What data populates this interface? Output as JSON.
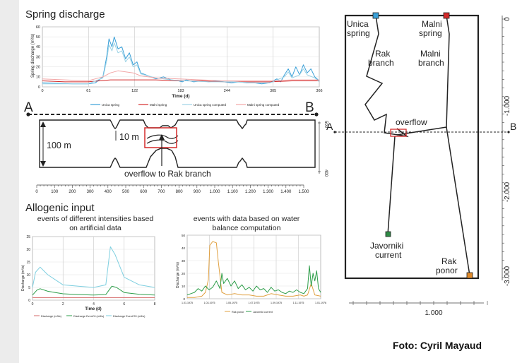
{
  "spring_panel": {
    "title": "Spring discharge",
    "ylabel": "Spring discharge (m³/s)",
    "xlabel": "Time (d)",
    "legend": [
      "Unica spring",
      "Malni spring",
      "Unica spring computed",
      "Malni spring computed"
    ]
  },
  "section": {
    "label_a": "A",
    "label_b": "B",
    "height_label": "100 m",
    "gap_label": "10 m",
    "overflow_label": "overflow to Rak branch",
    "axis_ticks": [
      "0",
      "100",
      "200",
      "300",
      "400",
      "500",
      "600",
      "700",
      "800",
      "900",
      "1.000",
      "1.100",
      "1.200",
      "1.300",
      "1.400",
      "1.500"
    ],
    "right_ticks": [
      "500",
      "400"
    ]
  },
  "allogenic": {
    "title": "Allogenic input",
    "sub_left_1": "events of different intensities based",
    "sub_left_2": "on artificial data",
    "sub_right_1": "events with data based on water",
    "sub_right_2": "balance computation"
  },
  "left_chart": {
    "ylabel": "Discharge (m³/s)",
    "xlabel": "Time (d)",
    "legend": [
      "Discharge (m3/s)",
      "Discharge Event*6 (m3/s)",
      "Discharge Event*20 (m3/s)"
    ]
  },
  "right_chart": {
    "ylabel": "Discharge (m³/s)",
    "xticks": [
      "1.01.1975",
      "1.03.1975",
      "1.05.1975",
      "1.07.1975",
      "1.09.1975",
      "1.11.1975",
      "1.01.1976"
    ],
    "legend": [
      "Rak ponor",
      "Javorniki current"
    ]
  },
  "map": {
    "unica_1": "Unica",
    "unica_2": "spring",
    "malni_1": "Malni",
    "malni_2": "spring",
    "rak_branch_1": "Rak",
    "rak_branch_2": "branch",
    "malni_branch_1": "Malni",
    "malni_branch_2": "branch",
    "overflow": "overflow",
    "label_a": "A",
    "label_b": "B",
    "jav_1": "Javorniki",
    "jav_2": "current",
    "ponor_1": "Rak",
    "ponor_2": "ponor",
    "bottom_tick": "1.000",
    "colors": {
      "unica": "#3aa0d8",
      "malni": "#d42a2a",
      "javorniki": "#2e8b45",
      "rak": "#e08a2a"
    }
  },
  "map_axis": {
    "ticks": [
      "0",
      "-1.000",
      "-2.000",
      "-3.000"
    ]
  },
  "credit": "Foto: Cyril Mayaud",
  "chart_data": [
    {
      "type": "line",
      "xlabel": "Time (d)",
      "ylabel": "Spring discharge (m³/s)",
      "xlim": [
        0,
        366
      ],
      "ylim": [
        0,
        60
      ],
      "x_ticks": [
        0,
        61,
        122,
        183,
        244,
        305,
        366
      ],
      "y_ticks": [
        0,
        10,
        20,
        30,
        40,
        50,
        60
      ],
      "legend": "bottom",
      "series": [
        {
          "name": "Unica spring",
          "color": "#3aa0d8",
          "x": [
            0,
            20,
            40,
            60,
            70,
            80,
            85,
            88,
            92,
            95,
            100,
            105,
            110,
            115,
            120,
            125,
            130,
            140,
            150,
            160,
            170,
            180,
            185,
            190,
            200,
            210,
            220,
            230,
            240,
            250,
            260,
            270,
            280,
            290,
            300,
            305,
            310,
            315,
            320,
            325,
            330,
            335,
            340,
            345,
            350,
            355,
            360,
            366
          ],
          "y": [
            4,
            3.5,
            3,
            3,
            4,
            10,
            30,
            48,
            40,
            50,
            38,
            40,
            28,
            34,
            22,
            25,
            14,
            11,
            8,
            10,
            7,
            6,
            5,
            7,
            5,
            6,
            5,
            6,
            5,
            4,
            5,
            4,
            4,
            3,
            4,
            6,
            8,
            5,
            12,
            18,
            10,
            20,
            12,
            22,
            14,
            18,
            10,
            6
          ]
        },
        {
          "name": "Malni spring",
          "color": "#d42a2a",
          "x": [
            0,
            30,
            60,
            90,
            120,
            150,
            180,
            210,
            240,
            270,
            300,
            330,
            366
          ],
          "y": [
            6,
            5,
            5,
            7,
            7,
            7,
            6,
            6,
            5,
            5,
            5,
            6,
            6
          ]
        },
        {
          "name": "Unica spring computed",
          "color": "#9dd3e6",
          "x": [
            0,
            40,
            60,
            80,
            85,
            88,
            92,
            95,
            100,
            105,
            110,
            115,
            120,
            125,
            130,
            150,
            170,
            190,
            220,
            250,
            280,
            300,
            305,
            310,
            320,
            325,
            330,
            340,
            345,
            350,
            360,
            366
          ],
          "y": [
            3,
            3,
            3,
            9,
            26,
            42,
            36,
            44,
            34,
            36,
            25,
            30,
            20,
            22,
            13,
            9,
            7,
            6,
            5,
            5,
            4,
            4,
            5,
            7,
            10,
            15,
            9,
            12,
            18,
            12,
            9,
            5
          ]
        },
        {
          "name": "Malni spring computed",
          "color": "#f2a7a7",
          "x": [
            0,
            30,
            60,
            80,
            90,
            100,
            110,
            120,
            130,
            150,
            180,
            210,
            240,
            270,
            300,
            330,
            366
          ],
          "y": [
            8,
            7,
            6,
            10,
            14,
            16,
            15,
            14,
            11,
            9,
            8,
            7,
            6,
            6,
            6,
            7,
            7
          ]
        }
      ]
    },
    {
      "type": "line",
      "xlabel": "Time (d)",
      "ylabel": "Discharge (m³/s)",
      "xlim": [
        0,
        8
      ],
      "ylim": [
        0,
        25
      ],
      "x_ticks": [
        0,
        2,
        4,
        6,
        8
      ],
      "y_ticks": [
        0,
        5,
        10,
        15,
        20,
        25
      ],
      "legend": "bottom",
      "series": [
        {
          "name": "Discharge (m3/s)",
          "color": "#d46a6a",
          "x": [
            0,
            0.5,
            1,
            2,
            3,
            4,
            5,
            6,
            7,
            8
          ],
          "y": [
            1,
            1,
            1,
            1,
            1,
            1,
            1,
            1,
            1,
            1
          ]
        },
        {
          "name": "Discharge Event*6 (m3/s)",
          "color": "#2e9e4a",
          "x": [
            0,
            0.3,
            0.5,
            1,
            1.5,
            2,
            3,
            4,
            4.8,
            5.2,
            5.5,
            6,
            7,
            8
          ],
          "y": [
            2,
            4,
            4.5,
            3.5,
            3,
            2.5,
            2.2,
            2,
            2.2,
            5.5,
            5,
            3,
            2.3,
            2
          ]
        },
        {
          "name": "Discharge Event*20 (m3/s)",
          "color": "#7ecfe0",
          "x": [
            0,
            0.2,
            0.5,
            1,
            1.5,
            2,
            3,
            4,
            4.8,
            5.1,
            5.4,
            6,
            7,
            8
          ],
          "y": [
            5,
            11,
            13,
            10,
            8,
            6,
            5.5,
            5,
            6,
            21,
            18,
            9,
            6,
            5
          ]
        }
      ]
    },
    {
      "type": "line",
      "ylabel": "Discharge (m³/s)",
      "xlim": [
        0,
        366
      ],
      "ylim": [
        0,
        50
      ],
      "x_tick_labels": [
        "1.01.1975",
        "1.03.1975",
        "1.05.1975",
        "1.07.1975",
        "1.09.1975",
        "1.11.1975",
        "1.01.1976"
      ],
      "y_ticks": [
        0,
        10,
        20,
        30,
        40,
        50
      ],
      "legend": "bottom",
      "series": [
        {
          "name": "Rak ponor",
          "color": "#e0a040",
          "x": [
            0,
            20,
            40,
            50,
            58,
            62,
            70,
            80,
            85,
            95,
            110,
            130,
            150,
            170,
            190,
            210,
            230,
            250,
            270,
            290,
            310,
            320,
            330,
            340,
            350,
            366
          ],
          "y": [
            1,
            1,
            2,
            5,
            15,
            42,
            45,
            44,
            30,
            5,
            3,
            4,
            3,
            3,
            2,
            2,
            4,
            3,
            2,
            2,
            3,
            2,
            3,
            12,
            3,
            2
          ]
        },
        {
          "name": "Javorniki current",
          "color": "#2e9e4a",
          "x": [
            0,
            10,
            20,
            30,
            40,
            50,
            60,
            70,
            80,
            90,
            95,
            100,
            110,
            120,
            130,
            140,
            150,
            160,
            170,
            180,
            190,
            200,
            210,
            220,
            230,
            240,
            250,
            260,
            270,
            280,
            290,
            300,
            310,
            320,
            330,
            335,
            340,
            345,
            350,
            355,
            360,
            366
          ],
          "y": [
            3,
            4,
            5,
            8,
            6,
            10,
            7,
            9,
            14,
            8,
            20,
            12,
            16,
            10,
            14,
            8,
            11,
            7,
            9,
            6,
            10,
            7,
            8,
            5,
            9,
            6,
            7,
            5,
            4,
            6,
            5,
            7,
            5,
            4,
            8,
            26,
            10,
            20,
            14,
            22,
            8,
            5
          ]
        }
      ]
    }
  ]
}
